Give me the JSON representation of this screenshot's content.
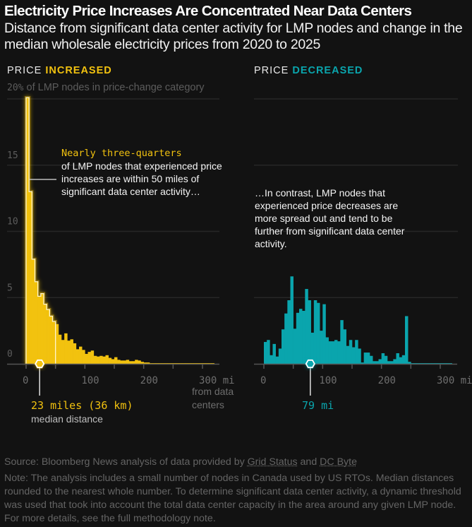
{
  "header": {
    "title": "Electricity Price Increases Are Concentrated Near Data Centers",
    "subtitle": "Distance from significant data center activity for LMP nodes and change in the median wholesale electricity prices from 2020 to 2025"
  },
  "panels": {
    "left": {
      "prefix": "PRICE ",
      "highlight": "INCREASED",
      "color": "#f2c20f"
    },
    "right": {
      "prefix": "PRICE ",
      "highlight": "DECREASED",
      "color": "#0aa5ad"
    }
  },
  "unit_note": {
    "value": "20%",
    "text": " of LMP nodes in price-change category"
  },
  "annotations": {
    "left_highlight": "Nearly three-quarters",
    "left_body": "of LMP nodes that experienced price increases are within 50 miles of significant data center activity…",
    "right_body": "…In contrast, LMP nodes that experienced price decreases are more spread out and tend to be further from significant data center activity."
  },
  "medians": {
    "left_label": "23 miles (36 km)",
    "left_sub": "median distance",
    "right_label": "79 mi"
  },
  "x_unit_label": "from data centers",
  "footer": {
    "source_prefix": "Source: Bloomberg News analysis of data provided by ",
    "source_link1": "Grid Status",
    "source_mid": " and ",
    "source_link2": "DC Byte",
    "note": "Note: The analysis includes a small number of nodes in Canada used by US RTOs. Median distances rounded to the nearest whole number. To determine significant data center activity, a dynamic threshold was used that took into account the total data center capacity in the area around any given LMP node. For more details, see the full methodology note."
  },
  "chart_data": [
    {
      "type": "bar",
      "title": "PRICE INCREASED",
      "xlabel": "mi from data centers",
      "ylabel": "% of LMP nodes in price-change category",
      "bin_width": 5,
      "xlim": [
        0,
        320
      ],
      "ylim": [
        0,
        20
      ],
      "yticks": [
        0,
        5,
        10,
        15,
        20
      ],
      "xticks": [
        0,
        50,
        100,
        150,
        200,
        250,
        300
      ],
      "xtick_labels": [
        "0",
        "",
        "100",
        "",
        "200",
        "",
        "300 mi"
      ],
      "highlight_range": [
        0,
        50
      ],
      "median": 23,
      "color": "#f2c20f",
      "values": [
        20.1,
        13.0,
        7.9,
        6.2,
        5.1,
        5.3,
        4.5,
        4.1,
        3.6,
        3.2,
        3.0,
        2.2,
        1.8,
        2.3,
        1.75,
        1.85,
        1.55,
        1.1,
        1.3,
        1.05,
        0.75,
        0.9,
        1.0,
        0.6,
        0.55,
        0.6,
        0.55,
        0.65,
        0.45,
        0.35,
        0.5,
        0.3,
        0.25,
        0.25,
        0.3,
        0.2,
        0.2,
        0.3,
        0.25,
        0.15,
        0.1,
        0.1,
        0.05,
        0.05,
        0.05,
        0.05,
        0.05,
        0.05,
        0.05,
        0.05,
        0.05,
        0.05,
        0.05,
        0.05,
        0.05,
        0.05,
        0.05,
        0.05,
        0.05,
        0.05,
        0.05,
        0.05,
        0.05,
        0.05
      ]
    },
    {
      "type": "bar",
      "title": "PRICE DECREASED",
      "xlabel": "mi",
      "ylabel": "% of LMP nodes in price-change category",
      "bin_width": 5,
      "xlim": [
        0,
        320
      ],
      "ylim": [
        0,
        20
      ],
      "yticks": [
        0,
        5,
        10,
        15,
        20
      ],
      "xticks": [
        0,
        50,
        100,
        150,
        200,
        250,
        300
      ],
      "xtick_labels": [
        "0",
        "",
        "100",
        "",
        "200",
        "",
        "300 mi"
      ],
      "median": 79,
      "color": "#0aa5ad",
      "values": [
        1.65,
        1.8,
        0.65,
        1.5,
        0.55,
        1.15,
        2.6,
        3.8,
        4.8,
        6.6,
        2.65,
        3.85,
        4.15,
        4.0,
        5.65,
        4.8,
        2.35,
        4.8,
        4.6,
        2.5,
        4.5,
        2.0,
        1.7,
        1.7,
        1.8,
        1.7,
        3.3,
        2.6,
        1.35,
        1.8,
        1.25,
        1.8,
        1.15,
        0.1,
        0.85,
        0.85,
        0.6,
        0.2,
        0.2,
        0.35,
        0.8,
        0.6,
        0.2,
        0.2,
        0.35,
        0.8,
        0.5,
        0.65,
        3.6,
        0.15,
        0.05,
        0.05,
        0.05,
        0.05,
        0.05,
        0.05,
        0.05,
        0.05,
        0.05,
        0.05,
        0.05,
        0.05,
        0.05,
        0.05
      ]
    }
  ]
}
